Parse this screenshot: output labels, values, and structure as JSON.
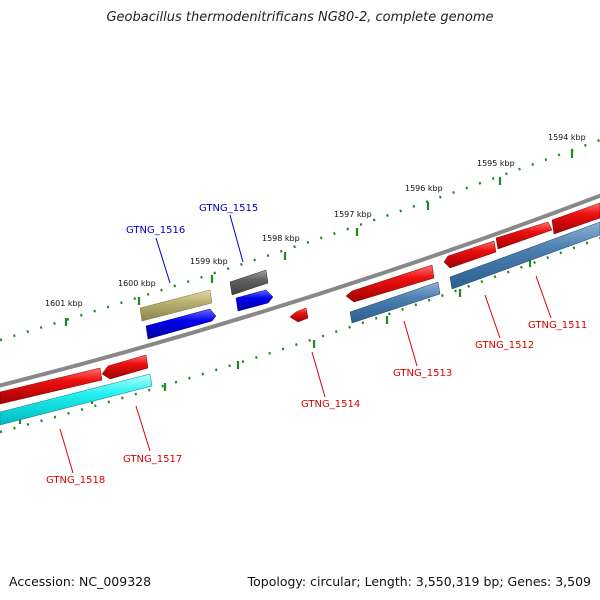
{
  "title": "Geobacillus thermodenitrificans NG80-2, complete genome",
  "footer": {
    "accession": "Accession: NC_009328",
    "stats": "Topology: circular; Length: 3,550,319 bp; Genes: 3,509"
  },
  "colors": {
    "backbone": "#808080",
    "ruler": "#1e8a1e",
    "label_forward": "#0000cc",
    "label_reverse": "#dd0000"
  },
  "ticks": [
    {
      "label": "1601 kbp"
    },
    {
      "label": "1600 kbp"
    },
    {
      "label": "1599 kbp"
    },
    {
      "label": "1598 kbp"
    },
    {
      "label": "1597 kbp"
    },
    {
      "label": "1596 kbp"
    },
    {
      "label": "1595 kbp"
    },
    {
      "label": "1594 kbp"
    }
  ],
  "genes": [
    {
      "name": "GTNG_1515",
      "strand": "forward",
      "color": "#606060"
    },
    {
      "name": "GTNG_1516",
      "strand": "forward",
      "color": "#b8b070"
    },
    {
      "name": "GTNG_1517",
      "strand": "reverse",
      "color": "#e81010"
    },
    {
      "name": "GTNG_1518",
      "strand": "reverse",
      "color": "#e81010"
    },
    {
      "name": "GTNG_1514",
      "strand": "reverse",
      "color": "#e81010"
    },
    {
      "name": "GTNG_1513",
      "strand": "reverse",
      "color": "#e81010"
    },
    {
      "name": "GTNG_1512",
      "strand": "reverse",
      "color": "#e81010"
    },
    {
      "name": "GTNG_1511",
      "strand": "reverse",
      "color": "#e81010"
    }
  ]
}
